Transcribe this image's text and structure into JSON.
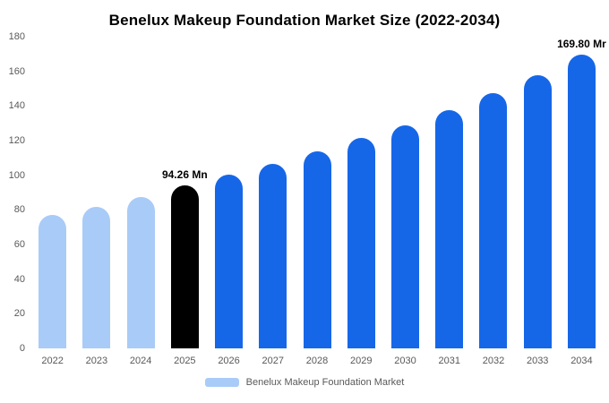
{
  "title": "Benelux Makeup Foundation Market Size (2022-2034)",
  "legend": {
    "label": "Benelux Makeup Foundation Market",
    "swatch_color": "#a9cbf7"
  },
  "chart_data": {
    "type": "bar",
    "title": "Benelux Makeup Foundation Market Size (2022-2034)",
    "categories": [
      "2022",
      "2023",
      "2024",
      "2025",
      "2026",
      "2027",
      "2028",
      "2029",
      "2030",
      "2031",
      "2032",
      "2033",
      "2034"
    ],
    "values": [
      77,
      81.5,
      87.5,
      94.26,
      100.3,
      106.5,
      113.8,
      121.5,
      129,
      137.6,
      147.4,
      157.8,
      169.8
    ],
    "unit": "Mn",
    "bar_colors": [
      "#a9cbf7",
      "#a9cbf7",
      "#a9cbf7",
      "#000000",
      "#1667e8",
      "#1667e8",
      "#1667e8",
      "#1667e8",
      "#1667e8",
      "#1667e8",
      "#1667e8",
      "#1667e8",
      "#1667e8"
    ],
    "bar_labels": [
      "",
      "",
      "",
      "94.26 Mn",
      "",
      "",
      "",
      "",
      "",
      "",
      "",
      "",
      "169.80 Mr"
    ],
    "ylim": [
      0,
      180
    ],
    "yticks": [
      0,
      20,
      40,
      60,
      80,
      100,
      120,
      140,
      160,
      180
    ],
    "grid": false,
    "legend_position": "bottom"
  }
}
